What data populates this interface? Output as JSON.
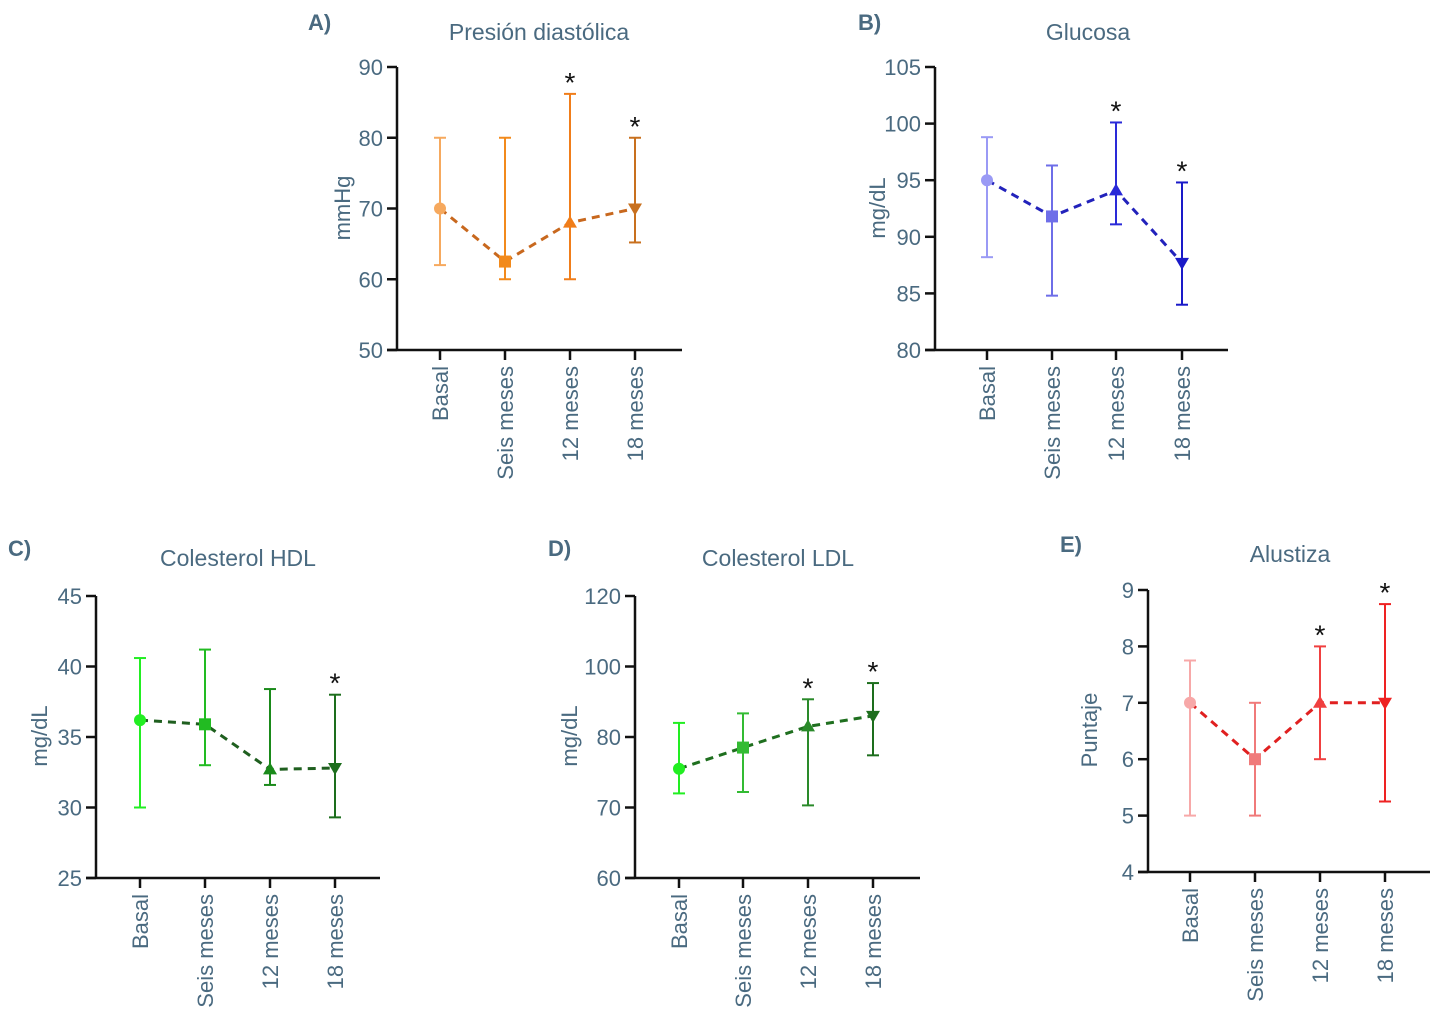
{
  "figure": {
    "categories": [
      "Basal",
      "Seis meses",
      "12 meses",
      "18 meses"
    ],
    "significance_marker": "*"
  },
  "chart_data": [
    {
      "type": "line",
      "panel": "A)",
      "title": "Presión diastólica",
      "ylabel": "mmHg",
      "xlabel": "",
      "ylim": [
        50,
        90
      ],
      "yticks": [
        50,
        60,
        70,
        80,
        90
      ],
      "categories": [
        "Basal",
        "Seis meses",
        "12 meses",
        "18 meses"
      ],
      "values": [
        70,
        62.5,
        68,
        70
      ],
      "error_low": [
        62,
        60,
        60,
        65.2
      ],
      "error_high": [
        80,
        80,
        86.2,
        80
      ],
      "significant": [
        false,
        false,
        true,
        true
      ],
      "markers": [
        "circle",
        "square",
        "triangle-up",
        "triangle-down"
      ],
      "point_colors": [
        "#f6a95e",
        "#f28a1c",
        "#f07d1a",
        "#c8701e"
      ],
      "line_color": "#c8681e",
      "line_style": "dashed"
    },
    {
      "type": "line",
      "panel": "B)",
      "title": "Glucosa",
      "ylabel": "mg/dL",
      "xlabel": "",
      "ylim": [
        80,
        105
      ],
      "yticks": [
        80,
        85,
        90,
        95,
        100,
        105
      ],
      "categories": [
        "Basal",
        "Seis meses",
        "12 meses",
        "18 meses"
      ],
      "values": [
        95,
        91.8,
        94.1,
        87.7
      ],
      "error_low": [
        88.2,
        84.8,
        91.1,
        84.0
      ],
      "error_high": [
        98.8,
        96.3,
        100.1,
        94.8
      ],
      "significant": [
        false,
        false,
        true,
        true
      ],
      "markers": [
        "circle",
        "square",
        "triangle-up",
        "triangle-down"
      ],
      "point_colors": [
        "#9a9af5",
        "#6e6ee8",
        "#2a2ad8",
        "#1a1ac8"
      ],
      "line_color": "#2222bb",
      "line_style": "dashed"
    },
    {
      "type": "line",
      "panel": "C)",
      "title": "Colesterol HDL",
      "ylabel": "mg/dL",
      "xlabel": "",
      "ylim": [
        25,
        45
      ],
      "yticks": [
        25,
        30,
        35,
        40,
        45
      ],
      "categories": [
        "Basal",
        "Seis meses",
        "12 meses",
        "18 meses"
      ],
      "values": [
        36.2,
        35.9,
        32.7,
        32.8
      ],
      "error_low": [
        30.0,
        33.0,
        31.6,
        29.3
      ],
      "error_high": [
        40.6,
        41.2,
        38.4,
        38.0
      ],
      "significant": [
        false,
        false,
        false,
        true
      ],
      "markers": [
        "circle",
        "square",
        "triangle-up",
        "triangle-down"
      ],
      "point_colors": [
        "#22ee22",
        "#22bb22",
        "#1a8a1a",
        "#1d6e1d"
      ],
      "line_color": "#1f5f1f",
      "line_style": "dashed"
    },
    {
      "type": "line",
      "panel": "D)",
      "title": "Colesterol LDL",
      "ylabel": "mg/dL",
      "xlabel": "",
      "ylim": [
        60,
        120
      ],
      "yticks": [
        60,
        70,
        80,
        100,
        120
      ],
      "y_tick_positions_note": "axis ticks labeled 60,70,80,100,120 at evenly spaced levels 60,70,80,90,100 scaled; values below are in data units",
      "categories": [
        "Basal",
        "Seis meses",
        "12 meses",
        "18 meses"
      ],
      "values": [
        75.5,
        78.5,
        83,
        86
      ],
      "error_low": [
        72,
        72.2,
        70.3,
        77.4
      ],
      "error_high": [
        84,
        86.7,
        90.7,
        95.3
      ],
      "significant": [
        false,
        false,
        true,
        true
      ],
      "markers": [
        "circle",
        "square",
        "triangle-up",
        "triangle-down"
      ],
      "point_colors": [
        "#22ee22",
        "#33bb33",
        "#2a8a2a",
        "#1d6e1d"
      ],
      "line_color": "#1f6f1f",
      "line_style": "dashed"
    },
    {
      "type": "line",
      "panel": "E)",
      "title": "Alustiza",
      "ylabel": "Puntaje",
      "xlabel": "",
      "ylim": [
        4,
        9
      ],
      "yticks": [
        4,
        5,
        6,
        7,
        8,
        9
      ],
      "categories": [
        "Basal",
        "Seis meses",
        "12 meses",
        "18 meses"
      ],
      "values": [
        7,
        6,
        7,
        7
      ],
      "error_low": [
        5,
        5,
        6,
        5.25
      ],
      "error_high": [
        7.75,
        7,
        8,
        8.75
      ],
      "significant": [
        false,
        false,
        true,
        true
      ],
      "markers": [
        "circle",
        "square",
        "triangle-up",
        "triangle-down"
      ],
      "point_colors": [
        "#f7a8a8",
        "#f07a7a",
        "#f04040",
        "#ee2222"
      ],
      "line_color": "#e02020",
      "line_style": "dashed"
    }
  ]
}
